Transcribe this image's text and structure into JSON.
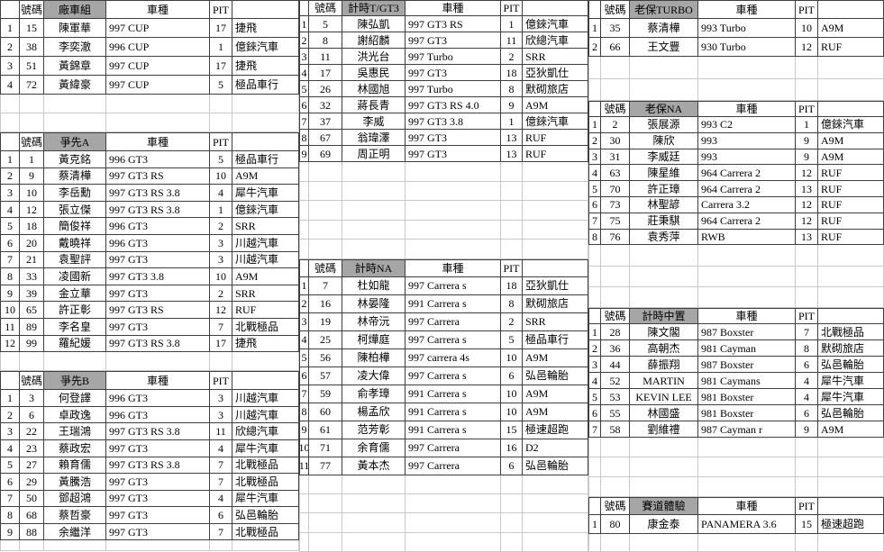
{
  "headers": {
    "number": "號碼",
    "car": "車種",
    "pit": "PIT"
  },
  "colors": {
    "group_header_bg": "#a6a6a6",
    "table_border": "#3f3f3f",
    "grid_line": "#c9c9c9"
  },
  "tables": {
    "factory": {
      "group": "廠車組",
      "rows": [
        [
          "1",
          "15",
          "陳軍華",
          "997 CUP",
          "17",
          "捷飛"
        ],
        [
          "2",
          "38",
          "李奕澈",
          "996 CUP",
          "1",
          "億錸汽車"
        ],
        [
          "3",
          "51",
          "黃錦章",
          "997 CUP",
          "17",
          "捷飛"
        ],
        [
          "4",
          "72",
          "黃緯豪",
          "997 CUP",
          "5",
          "極品車行"
        ]
      ]
    },
    "sprint_a": {
      "group": "爭先A",
      "rows": [
        [
          "1",
          "1",
          "黃克銘",
          "996 GT3",
          "5",
          "極品車行"
        ],
        [
          "2",
          "9",
          "蔡清樺",
          "997 GT3 RS",
          "10",
          "A9M"
        ],
        [
          "3",
          "10",
          "李岳勳",
          "997 GT3 RS 3.8",
          "4",
          "犀牛汽車"
        ],
        [
          "4",
          "12",
          "張立傑",
          "997 GT3 RS 3.8",
          "1",
          "億錸汽車"
        ],
        [
          "5",
          "18",
          "簡俊祥",
          "996 GT3",
          "2",
          "SRR"
        ],
        [
          "6",
          "20",
          "戴曉祥",
          "996 GT3",
          "3",
          "川越汽車"
        ],
        [
          "7",
          "21",
          "袁聖評",
          "997 GT3",
          "3",
          "川越汽車"
        ],
        [
          "8",
          "33",
          "凌國新",
          "997 GT3 3.8",
          "10",
          "A9M"
        ],
        [
          "9",
          "39",
          "金立華",
          "997 GT3",
          "2",
          "SRR"
        ],
        [
          "10",
          "65",
          "許正彰",
          "997 GT3 RS",
          "12",
          "RUF"
        ],
        [
          "11",
          "89",
          "李名皇",
          "997 GT3",
          "7",
          "北戰極品"
        ],
        [
          "12",
          "99",
          "羅紀媛",
          "997 GT3 RS 3.8",
          "17",
          "捷飛"
        ]
      ]
    },
    "sprint_b": {
      "group": "爭先B",
      "rows": [
        [
          "1",
          "3",
          "何登譯",
          "996 GT3",
          "3",
          "川越汽車"
        ],
        [
          "2",
          "6",
          "卓政逸",
          "996 GT3",
          "3",
          "川越汽車"
        ],
        [
          "3",
          "22",
          "王瑞鴻",
          "997 GT3 RS 3.8",
          "11",
          "欣總汽車"
        ],
        [
          "4",
          "23",
          "蔡政宏",
          "997 GT3",
          "4",
          "犀牛汽車"
        ],
        [
          "5",
          "27",
          "賴育儒",
          "997 GT3 RS 3.8",
          "7",
          "北戰極品"
        ],
        [
          "6",
          "29",
          "黃騰浩",
          "997 GT3",
          "7",
          "北戰極品"
        ],
        [
          "7",
          "50",
          "鄧超鴻",
          "997 GT3",
          "4",
          "犀牛汽車"
        ],
        [
          "8",
          "68",
          "蔡哲豪",
          "997 GT3",
          "6",
          "弘邑輪胎"
        ],
        [
          "9",
          "88",
          "余繼洋",
          "997 GT3",
          "7",
          "北戰極品"
        ]
      ]
    },
    "time_tgt3": {
      "group": "計時T/GT3",
      "rows": [
        [
          "1",
          "5",
          "陳弘凱",
          "997 GT3 RS",
          "1",
          "億錸汽車"
        ],
        [
          "2",
          "8",
          "謝紹麟",
          "997 GT3",
          "11",
          "欣總汽車"
        ],
        [
          "3",
          "11",
          "洪光台",
          "997 Turbo",
          "2",
          "SRR"
        ],
        [
          "4",
          "17",
          "吳惠民",
          "997 GT3",
          "18",
          "亞狄凱仕"
        ],
        [
          "5",
          "26",
          "林國旭",
          "997 Turbo",
          "8",
          "默砌旅店"
        ],
        [
          "6",
          "32",
          "蔣長青",
          "997 GT3 RS 4.0",
          "9",
          "A9M"
        ],
        [
          "7",
          "37",
          "李威",
          "997 GT3 3.8",
          "1",
          "億錸汽車"
        ],
        [
          "8",
          "67",
          "翁瑋澤",
          "997 GT3",
          "13",
          "RUF"
        ],
        [
          "9",
          "69",
          "周正明",
          "997 GT3",
          "13",
          "RUF"
        ]
      ]
    },
    "time_na": {
      "group": "計時NA",
      "rows": [
        [
          "1",
          "7",
          "杜如龍",
          "997 Carrera s",
          "18",
          "亞狄凱仕"
        ],
        [
          "2",
          "16",
          "林晏隆",
          "991 Carrera s",
          "8",
          "默砌旅店"
        ],
        [
          "3",
          "19",
          "林帝沅",
          "997 Carrera",
          "2",
          "SRR"
        ],
        [
          "4",
          "25",
          "柯燁庭",
          "997 Carrera s",
          "5",
          "極品車行"
        ],
        [
          "5",
          "56",
          "陳柏樺",
          "997 carrera 4s",
          "10",
          "A9M"
        ],
        [
          "6",
          "57",
          "凌大偉",
          "997 Carrera s",
          "6",
          "弘邑輪胎"
        ],
        [
          "7",
          "59",
          "俞孝璋",
          "991 Carrera s",
          "10",
          "A9M"
        ],
        [
          "8",
          "60",
          "楊孟欣",
          "991 Carrera s",
          "10",
          "A9M"
        ],
        [
          "9",
          "61",
          "范芳彰",
          "991 Carrera s",
          "15",
          "極速超跑"
        ],
        [
          "10",
          "71",
          "余育儒",
          "997 Carrera",
          "16",
          "D2"
        ],
        [
          "11",
          "77",
          "黃本杰",
          "997 Carrera",
          "6",
          "弘邑輪胎"
        ]
      ]
    },
    "classic_turbo": {
      "group": "老保TURBO",
      "rows": [
        [
          "1",
          "35",
          "蔡清樺",
          "993 Turbo",
          "10",
          "A9M"
        ],
        [
          "2",
          "66",
          "王文豐",
          "930 Turbo",
          "12",
          "RUF"
        ]
      ]
    },
    "classic_na": {
      "group": "老保NA",
      "rows": [
        [
          "1",
          "2",
          "張展源",
          "993 C2",
          "1",
          "億錸汽車"
        ],
        [
          "2",
          "30",
          "陳欣",
          "993",
          "9",
          "A9M"
        ],
        [
          "3",
          "31",
          "李威廷",
          "993",
          "9",
          "A9M"
        ],
        [
          "4",
          "63",
          "陳星維",
          "964 Carrera 2",
          "12",
          "RUF"
        ],
        [
          "5",
          "70",
          "許正璋",
          "964 Carrera 2",
          "13",
          "RUF"
        ],
        [
          "6",
          "73",
          "林聖諺",
          "Carrera 3.2",
          "12",
          "RUF"
        ],
        [
          "7",
          "75",
          "莊秉騏",
          "964 Carrera 2",
          "12",
          "RUF"
        ],
        [
          "8",
          "76",
          "袁秀萍",
          "RWB",
          "13",
          "RUF"
        ]
      ]
    },
    "time_mid": {
      "group": "計時中置",
      "rows": [
        [
          "1",
          "28",
          "陳文閣",
          "987 Boxster",
          "7",
          "北戰極品"
        ],
        [
          "2",
          "36",
          "高朝杰",
          "981 Cayman",
          "8",
          "默砌旅店"
        ],
        [
          "3",
          "44",
          "薛振翔",
          "987 Boxster",
          "6",
          "弘邑輪胎"
        ],
        [
          "4",
          "52",
          "MARTIN",
          "981 Caymans",
          "4",
          "犀牛汽車"
        ],
        [
          "5",
          "53",
          "KEVIN LEE",
          "981 Boxster",
          "4",
          "犀牛汽車"
        ],
        [
          "6",
          "55",
          "林國盛",
          "981 Boxster",
          "6",
          "弘邑輪胎"
        ],
        [
          "7",
          "58",
          "劉維禮",
          "987 Cayman r",
          "9",
          "A9M"
        ]
      ]
    },
    "track_exp": {
      "group": "賽道體驗",
      "rows": [
        [
          "1",
          "80",
          "康金泰",
          "PANAMERA 3.6",
          "15",
          "極速超跑"
        ]
      ]
    }
  }
}
